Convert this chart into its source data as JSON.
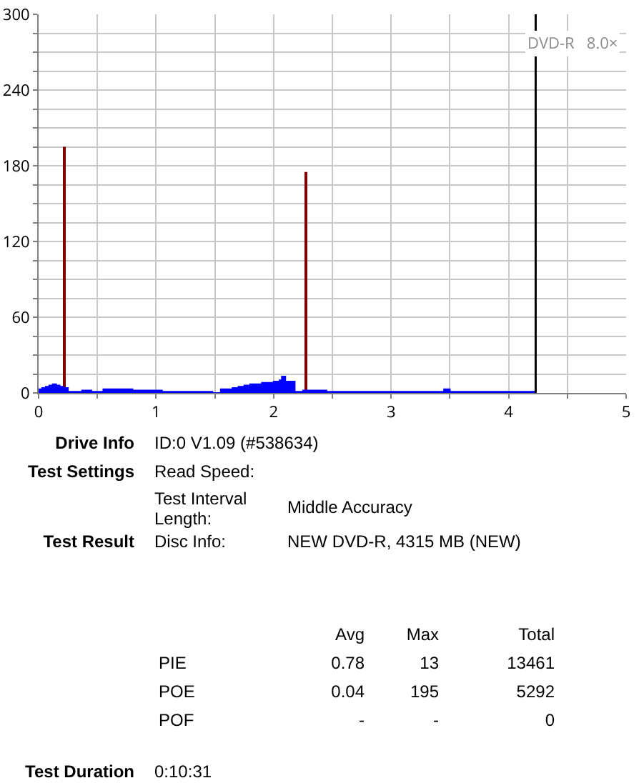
{
  "chart_data": {
    "type": "area",
    "xlim": [
      0,
      5
    ],
    "xticks": [
      0,
      {
        "value": 0.5,
        "label": null
      },
      1,
      {
        "value": 1.5,
        "label": null
      },
      2,
      {
        "value": 2.5,
        "label": null
      },
      3,
      {
        "value": 3.5,
        "label": null
      },
      4,
      {
        "value": 4.5,
        "label": null
      },
      5
    ],
    "ylim": [
      0,
      300
    ],
    "yticks": [
      0,
      {
        "value": 15,
        "label": null
      },
      {
        "value": 30,
        "label": null
      },
      {
        "value": 45,
        "label": null
      },
      60,
      {
        "value": 75,
        "label": null
      },
      {
        "value": 90,
        "label": null
      },
      {
        "value": 105,
        "label": null
      },
      120,
      {
        "value": 135,
        "label": null
      },
      {
        "value": 150,
        "label": null
      },
      {
        "value": 165,
        "label": null
      },
      180,
      {
        "value": 195,
        "label": null
      },
      {
        "value": 210,
        "label": null
      },
      {
        "value": 225,
        "label": null
      },
      240,
      {
        "value": 255,
        "label": null
      },
      {
        "value": 270,
        "label": null
      },
      {
        "value": 285,
        "label": null
      },
      300
    ],
    "grid": true,
    "series": [
      {
        "color": "#0000ff",
        "x": [
          0,
          0.03,
          0.06,
          0.09,
          0.12,
          0.15,
          0.18,
          0.21,
          0.25,
          0.3,
          0.37,
          0.45,
          0.5,
          0.55,
          0.6,
          0.7,
          0.8,
          0.9,
          0.97,
          1.05,
          1.15,
          1.25,
          1.35,
          1.43,
          1.48,
          1.55,
          1.6,
          1.65,
          1.7,
          1.75,
          1.8,
          1.85,
          1.9,
          1.95,
          2.0,
          2.05,
          2.07,
          2.1,
          2.14,
          2.18,
          2.25,
          2.35,
          2.45,
          2.55,
          2.7,
          2.9,
          3.1,
          3.3,
          3.45,
          3.5,
          3.7,
          3.9,
          4.1,
          4.2,
          4.22
        ],
        "values": [
          3,
          4,
          5,
          6,
          7,
          6,
          5,
          4,
          1,
          1,
          2,
          1,
          1,
          3,
          3,
          3,
          2,
          2,
          2,
          1,
          1,
          1,
          1,
          1,
          0,
          3,
          3,
          4,
          5,
          6,
          7,
          7,
          8,
          8,
          9,
          10,
          13,
          9,
          9,
          1,
          2,
          2,
          1,
          1,
          1,
          1,
          1,
          1,
          3,
          1,
          1,
          1,
          1,
          1,
          0
        ]
      },
      {
        "type": "bar",
        "color": "#800000",
        "x": [
          0.22,
          2.27
        ],
        "values": [
          195,
          175
        ]
      }
    ],
    "ref_lines": [
      {
        "axis": "x",
        "value": 4.23,
        "color": "#000000"
      }
    ],
    "annotations": [
      "DVD-R   8.0×",
      "Drive Info",
      "ID:0 V1.09 (#538634)",
      "Test Settings",
      "Read Speed:",
      "Test Interval Length:",
      "Middle Accuracy",
      "Test Result",
      "Disc Info:",
      "NEW DVD-R, 4315 MB (NEW)",
      "Avg",
      "Max",
      "Total",
      "PIE",
      "0.78",
      "13",
      "13461",
      "POE",
      "0.04",
      "195",
      "5292",
      "POF",
      "-",
      "-",
      "0",
      "Test Duration",
      "0:10:31"
    ]
  }
}
